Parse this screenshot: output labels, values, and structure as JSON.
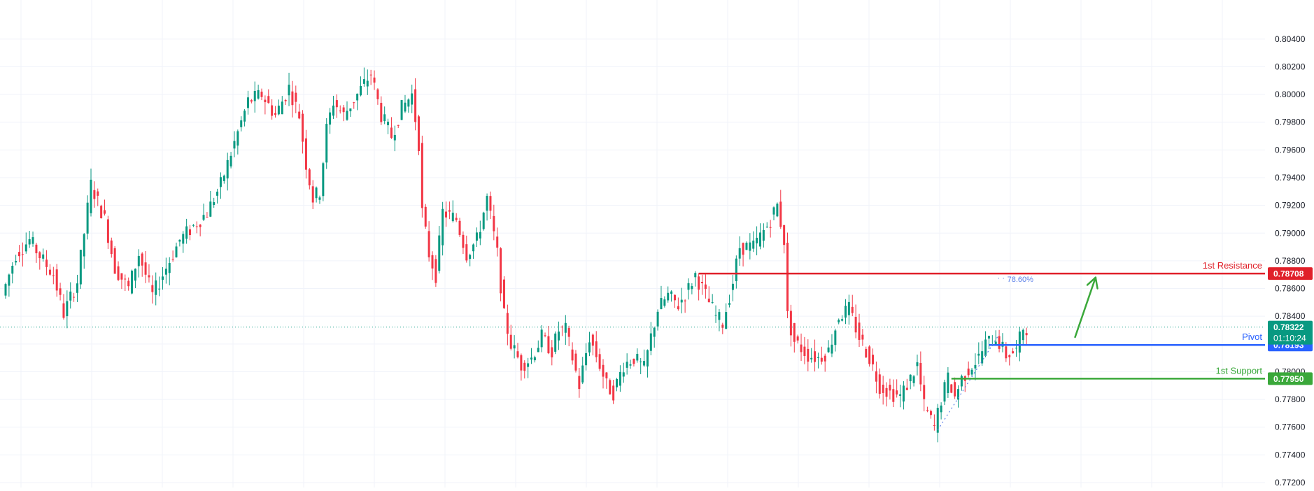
{
  "colors": {
    "up": "#089981",
    "down": "#f23645",
    "resistance": "#e0202a",
    "pivot": "#2962ff",
    "support": "#3aa83a",
    "grid": "#f0f3fa",
    "axis_text": "#131722",
    "last_price_line": "#089981",
    "fib": "#5b7fe8"
  },
  "chart_data": {
    "type": "candlestick",
    "y_axis": {
      "min": 0.772,
      "max": 0.805,
      "ticks": [
        "0.77200",
        "0.77400",
        "0.77600",
        "0.77800",
        "0.78000",
        "0.78200",
        "0.78400",
        "0.78600",
        "0.78800",
        "0.79000",
        "0.79200",
        "0.79400",
        "0.79600",
        "0.79800",
        "0.80000",
        "0.80200",
        "0.80400"
      ],
      "position": "right"
    },
    "grid": true,
    "levels": [
      {
        "id": "resistance",
        "label": "1st Resistance",
        "price": 0.78708,
        "price_label": "0.78708",
        "color": "#e0202a",
        "start_index": 203
      },
      {
        "id": "pivot",
        "label": "Pivot",
        "price": 0.78193,
        "price_label": "0.78193",
        "color": "#2962ff",
        "start_index": 288
      },
      {
        "id": "support",
        "label": "1st Support",
        "price": 0.7795,
        "price_label": "0.77950",
        "color": "#3aa83a",
        "start_index": 277
      }
    ],
    "last_price": {
      "price": 0.78322,
      "price_label": "0.78322",
      "countdown": "01:10:24",
      "color": "#089981"
    },
    "fib_annotation": {
      "label": "78.60%",
      "price": 0.78708,
      "index": 295
    },
    "arrow": {
      "from_index": 312,
      "from_price": 0.7825,
      "to_index": 318,
      "to_price": 0.7868
    },
    "anchors": [
      {
        "i": 0,
        "p": 0.7855
      },
      {
        "i": 4,
        "p": 0.7885
      },
      {
        "i": 8,
        "p": 0.7895
      },
      {
        "i": 12,
        "p": 0.788
      },
      {
        "i": 15,
        "p": 0.787
      },
      {
        "i": 18,
        "p": 0.7842
      },
      {
        "i": 22,
        "p": 0.7865
      },
      {
        "i": 26,
        "p": 0.7935
      },
      {
        "i": 30,
        "p": 0.791
      },
      {
        "i": 33,
        "p": 0.7875
      },
      {
        "i": 37,
        "p": 0.786
      },
      {
        "i": 40,
        "p": 0.7885
      },
      {
        "i": 44,
        "p": 0.7855
      },
      {
        "i": 48,
        "p": 0.7875
      },
      {
        "i": 52,
        "p": 0.7895
      },
      {
        "i": 56,
        "p": 0.7905
      },
      {
        "i": 60,
        "p": 0.7915
      },
      {
        "i": 64,
        "p": 0.7935
      },
      {
        "i": 68,
        "p": 0.7965
      },
      {
        "i": 72,
        "p": 0.7995
      },
      {
        "i": 76,
        "p": 0.8
      },
      {
        "i": 80,
        "p": 0.7985
      },
      {
        "i": 84,
        "p": 0.8005
      },
      {
        "i": 87,
        "p": 0.7985
      },
      {
        "i": 89,
        "p": 0.795
      },
      {
        "i": 91,
        "p": 0.7925
      },
      {
        "i": 93,
        "p": 0.793
      },
      {
        "i": 95,
        "p": 0.7975
      },
      {
        "i": 97,
        "p": 0.7995
      },
      {
        "i": 100,
        "p": 0.7985
      },
      {
        "i": 104,
        "p": 0.8
      },
      {
        "i": 108,
        "p": 0.8015
      },
      {
        "i": 111,
        "p": 0.7985
      },
      {
        "i": 114,
        "p": 0.797
      },
      {
        "i": 117,
        "p": 0.799
      },
      {
        "i": 120,
        "p": 0.8
      },
      {
        "i": 122,
        "p": 0.7965
      },
      {
        "i": 123,
        "p": 0.7915
      },
      {
        "i": 125,
        "p": 0.7885
      },
      {
        "i": 127,
        "p": 0.787
      },
      {
        "i": 129,
        "p": 0.7915
      },
      {
        "i": 133,
        "p": 0.791
      },
      {
        "i": 136,
        "p": 0.7885
      },
      {
        "i": 139,
        "p": 0.7895
      },
      {
        "i": 142,
        "p": 0.7925
      },
      {
        "i": 145,
        "p": 0.7885
      },
      {
        "i": 147,
        "p": 0.784
      },
      {
        "i": 149,
        "p": 0.782
      },
      {
        "i": 152,
        "p": 0.7805
      },
      {
        "i": 155,
        "p": 0.781
      },
      {
        "i": 158,
        "p": 0.7825
      },
      {
        "i": 161,
        "p": 0.7815
      },
      {
        "i": 163,
        "p": 0.783
      },
      {
        "i": 165,
        "p": 0.783
      },
      {
        "i": 167,
        "p": 0.781
      },
      {
        "i": 169,
        "p": 0.779
      },
      {
        "i": 172,
        "p": 0.7825
      },
      {
        "i": 175,
        "p": 0.7805
      },
      {
        "i": 177,
        "p": 0.779
      },
      {
        "i": 179,
        "p": 0.7785
      },
      {
        "i": 182,
        "p": 0.7805
      },
      {
        "i": 185,
        "p": 0.781
      },
      {
        "i": 188,
        "p": 0.7802
      },
      {
        "i": 190,
        "p": 0.7825
      },
      {
        "i": 192,
        "p": 0.7845
      },
      {
        "i": 195,
        "p": 0.7855
      },
      {
        "i": 198,
        "p": 0.7848
      },
      {
        "i": 201,
        "p": 0.786
      },
      {
        "i": 203,
        "p": 0.787
      },
      {
        "i": 206,
        "p": 0.7855
      },
      {
        "i": 209,
        "p": 0.784
      },
      {
        "i": 211,
        "p": 0.7835
      },
      {
        "i": 214,
        "p": 0.7865
      },
      {
        "i": 216,
        "p": 0.789
      },
      {
        "i": 220,
        "p": 0.789
      },
      {
        "i": 224,
        "p": 0.7905
      },
      {
        "i": 227,
        "p": 0.792
      },
      {
        "i": 229,
        "p": 0.7895
      },
      {
        "i": 230,
        "p": 0.784
      },
      {
        "i": 232,
        "p": 0.7822
      },
      {
        "i": 236,
        "p": 0.7812
      },
      {
        "i": 239,
        "p": 0.781
      },
      {
        "i": 242,
        "p": 0.7815
      },
      {
        "i": 245,
        "p": 0.784
      },
      {
        "i": 248,
        "p": 0.7845
      },
      {
        "i": 251,
        "p": 0.7825
      },
      {
        "i": 254,
        "p": 0.781
      },
      {
        "i": 257,
        "p": 0.779
      },
      {
        "i": 260,
        "p": 0.7785
      },
      {
        "i": 263,
        "p": 0.7782
      },
      {
        "i": 266,
        "p": 0.7795
      },
      {
        "i": 268,
        "p": 0.7805
      },
      {
        "i": 270,
        "p": 0.7775
      },
      {
        "i": 273,
        "p": 0.776
      },
      {
        "i": 275,
        "p": 0.778
      },
      {
        "i": 277,
        "p": 0.7795
      },
      {
        "i": 279,
        "p": 0.7782
      },
      {
        "i": 281,
        "p": 0.7795
      },
      {
        "i": 284,
        "p": 0.7805
      },
      {
        "i": 286,
        "p": 0.781
      },
      {
        "i": 288,
        "p": 0.782
      },
      {
        "i": 291,
        "p": 0.7825
      },
      {
        "i": 294,
        "p": 0.7812
      },
      {
        "i": 297,
        "p": 0.7815
      },
      {
        "i": 299,
        "p": 0.7832
      }
    ]
  }
}
